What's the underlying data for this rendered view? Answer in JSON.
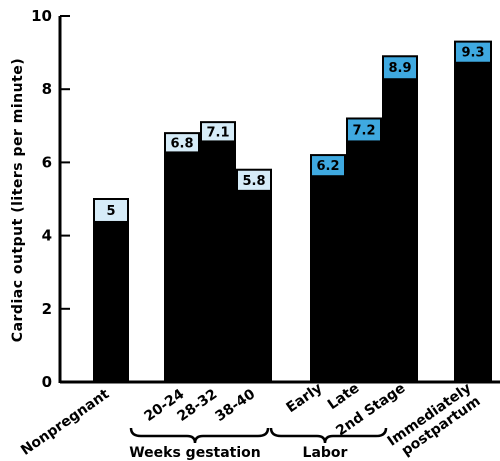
{
  "chart_data": {
    "type": "bar",
    "ylabel": "Cardiac output (liters per minute)",
    "ylim": [
      0,
      10
    ],
    "yticks": [
      "0",
      "2",
      "4",
      "6",
      "8",
      "10"
    ],
    "categories": [
      "Nonpregnant",
      "20-24",
      "28-32",
      "38-40",
      "Early",
      "Late",
      "2nd Stage",
      "Immediately postpartum"
    ],
    "values": [
      5,
      6.8,
      7.1,
      5.8,
      6.2,
      7.2,
      8.9,
      9.3
    ],
    "value_labels": [
      "5",
      "6.8",
      "7.1",
      "5.8",
      "6.2",
      "7.2",
      "8.9",
      "9.3"
    ],
    "base_values": [
      4.4,
      6.3,
      6.6,
      5.25,
      5.65,
      6.6,
      8.3,
      8.75
    ],
    "groups": [
      {
        "label": "Weeks gestation",
        "categories": [
          "20-24",
          "28-32",
          "38-40"
        ]
      },
      {
        "label": "Labor",
        "categories": [
          "Early",
          "Late",
          "2nd Stage"
        ]
      }
    ],
    "grid": false,
    "colors": {
      "bar": "#000000",
      "increment_pale": "#d6ecf8",
      "increment_blue": "#3fa9e0"
    }
  }
}
